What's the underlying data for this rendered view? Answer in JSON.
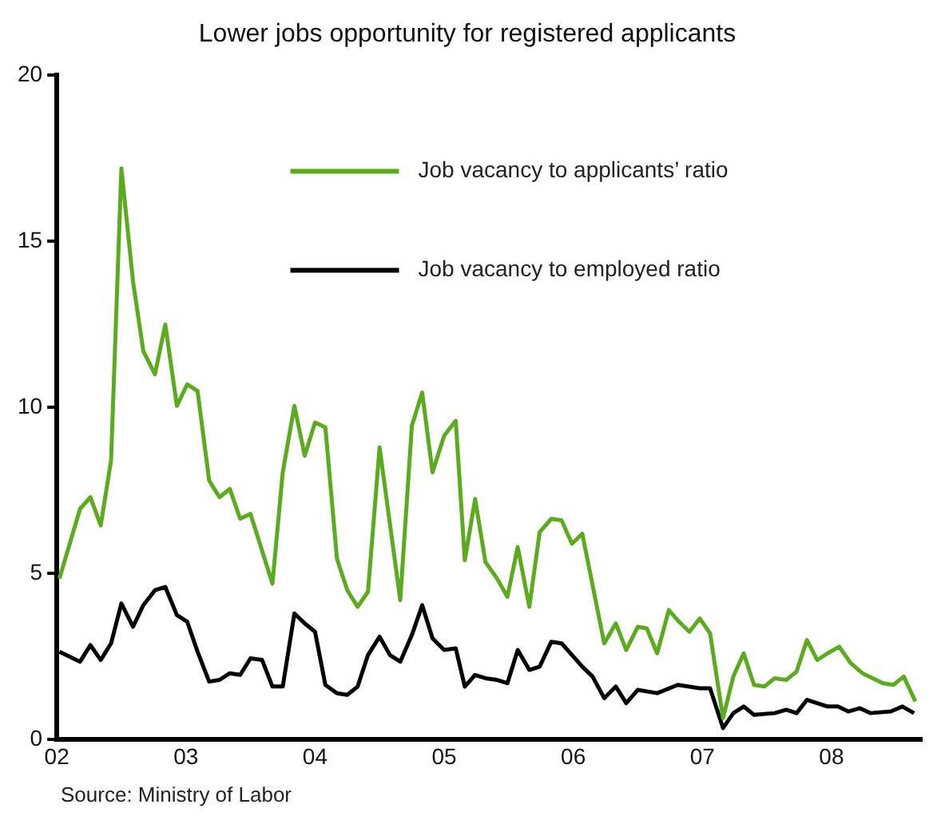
{
  "chart_data": {
    "type": "line",
    "title": "Lower jobs opportunity for registered applicants",
    "annotations": [
      "Source: Ministry of Labor"
    ],
    "xlim": [
      2002,
      2008.7
    ],
    "xticks": [
      {
        "value": 2002,
        "label": "02"
      },
      {
        "value": 2003,
        "label": "03"
      },
      {
        "value": 2004,
        "label": "04"
      },
      {
        "value": 2005,
        "label": "05"
      },
      {
        "value": 2006,
        "label": "06"
      },
      {
        "value": 2007,
        "label": "07"
      },
      {
        "value": 2008,
        "label": "08"
      }
    ],
    "ylim": [
      0,
      20
    ],
    "yticks": [
      0,
      5,
      10,
      15,
      20
    ],
    "grid": false,
    "legend": "top right",
    "marker": "none",
    "line_style": "solid",
    "series": [
      {
        "name": "Job vacancy to applicants’ ratio",
        "color": "#5aab1e",
        "x": [
          2002.02,
          2002.18,
          2002.26,
          2002.34,
          2002.42,
          2002.5,
          2002.59,
          2002.67,
          2002.76,
          2002.84,
          2002.93,
          2003.01,
          2003.09,
          2003.18,
          2003.26,
          2003.34,
          2003.42,
          2003.5,
          2003.67,
          2003.75,
          2003.84,
          2003.92,
          2004.0,
          2004.08,
          2004.17,
          2004.25,
          2004.33,
          2004.41,
          2004.5,
          2004.58,
          2004.66,
          2004.75,
          2004.83,
          2004.91,
          2005.0,
          2005.09,
          2005.16,
          2005.24,
          2005.32,
          2005.41,
          2005.49,
          2005.57,
          2005.66,
          2005.74,
          2005.83,
          2005.91,
          2005.99,
          2006.07,
          2006.24,
          2006.33,
          2006.41,
          2006.5,
          2006.57,
          2006.65,
          2006.74,
          2006.82,
          2006.9,
          2006.98,
          2007.06,
          2007.16,
          2007.24,
          2007.32,
          2007.4,
          2007.48,
          2007.56,
          2007.65,
          2007.73,
          2007.81,
          2007.89,
          2007.97,
          2008.06,
          2008.15,
          2008.24,
          2008.32,
          2008.4,
          2008.48,
          2008.56,
          2008.65
        ],
        "values": [
          4.85,
          6.95,
          7.3,
          6.45,
          8.4,
          17.2,
          13.8,
          11.7,
          11.0,
          12.5,
          10.05,
          10.7,
          10.5,
          7.8,
          7.3,
          7.55,
          6.65,
          6.8,
          4.7,
          8.05,
          10.05,
          8.55,
          9.55,
          9.4,
          5.45,
          4.5,
          4.0,
          4.45,
          8.8,
          6.5,
          4.2,
          9.45,
          10.45,
          8.05,
          9.15,
          9.6,
          5.4,
          7.25,
          5.35,
          4.85,
          4.3,
          5.8,
          4.0,
          6.25,
          6.65,
          6.6,
          5.9,
          6.2,
          2.9,
          3.5,
          2.7,
          3.4,
          3.35,
          2.6,
          3.9,
          3.55,
          3.25,
          3.65,
          3.2,
          0.65,
          1.9,
          2.6,
          1.65,
          1.6,
          1.85,
          1.8,
          2.05,
          3.0,
          2.4,
          2.6,
          2.8,
          2.3,
          2.0,
          1.85,
          1.7,
          1.65,
          1.9,
          1.15
        ]
      },
      {
        "name": "Job vacancy to employed ratio",
        "color": "#000000",
        "x": [
          2002.02,
          2002.18,
          2002.26,
          2002.34,
          2002.42,
          2002.5,
          2002.59,
          2002.67,
          2002.76,
          2002.84,
          2002.93,
          2003.01,
          2003.09,
          2003.18,
          2003.26,
          2003.34,
          2003.42,
          2003.5,
          2003.59,
          2003.67,
          2003.75,
          2003.84,
          2003.92,
          2004.0,
          2004.08,
          2004.17,
          2004.25,
          2004.33,
          2004.41,
          2004.5,
          2004.58,
          2004.66,
          2004.75,
          2004.83,
          2004.91,
          2005.0,
          2005.09,
          2005.16,
          2005.24,
          2005.32,
          2005.41,
          2005.49,
          2005.57,
          2005.66,
          2005.74,
          2005.83,
          2005.91,
          2005.99,
          2006.07,
          2006.15,
          2006.24,
          2006.33,
          2006.41,
          2006.5,
          2006.65,
          2006.81,
          2006.98,
          2007.06,
          2007.16,
          2007.24,
          2007.32,
          2007.4,
          2007.56,
          2007.65,
          2007.73,
          2007.81,
          2007.97,
          2008.05,
          2008.13,
          2008.22,
          2008.3,
          2008.46,
          2008.55,
          2008.64
        ],
        "values": [
          2.65,
          2.35,
          2.85,
          2.4,
          2.9,
          4.1,
          3.4,
          4.05,
          4.5,
          4.6,
          3.75,
          3.55,
          2.65,
          1.75,
          1.8,
          2.0,
          1.95,
          2.45,
          2.4,
          1.6,
          1.6,
          3.8,
          3.5,
          3.25,
          1.65,
          1.4,
          1.35,
          1.6,
          2.55,
          3.1,
          2.55,
          2.35,
          3.15,
          4.05,
          3.05,
          2.7,
          2.75,
          1.6,
          1.95,
          1.85,
          1.8,
          1.7,
          2.7,
          2.1,
          2.2,
          2.95,
          2.9,
          2.55,
          2.2,
          1.9,
          1.25,
          1.6,
          1.1,
          1.5,
          1.4,
          1.65,
          1.55,
          1.55,
          0.35,
          0.8,
          1.0,
          0.75,
          0.8,
          0.9,
          0.8,
          1.2,
          1.0,
          1.0,
          0.85,
          0.95,
          0.8,
          0.85,
          1.0,
          0.8
        ]
      }
    ]
  }
}
